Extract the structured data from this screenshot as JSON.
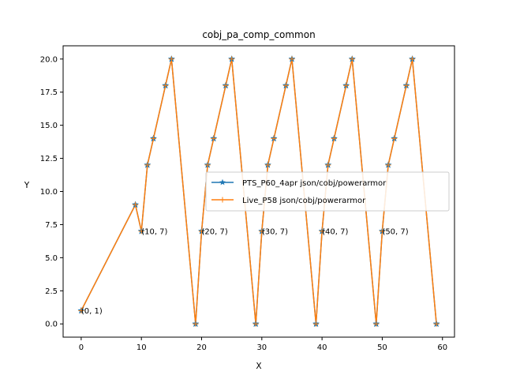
{
  "chart_data": {
    "type": "line",
    "title": "cobj_pa_comp_common",
    "xlabel": "X",
    "ylabel": "Y",
    "xlim": [
      -3,
      62
    ],
    "ylim": [
      -1,
      21
    ],
    "xticks": [
      0,
      10,
      20,
      30,
      40,
      50,
      60
    ],
    "yticks": [
      0.0,
      2.5,
      5.0,
      7.5,
      10.0,
      12.5,
      15.0,
      17.5,
      20.0
    ],
    "ytick_labels": [
      "0.0",
      "2.5",
      "5.0",
      "7.5",
      "10.0",
      "12.5",
      "15.0",
      "17.5",
      "20.0"
    ],
    "grid": false,
    "legend_position": "center-right",
    "series": [
      {
        "name": "PTS_P60_4apr json/cobj/powerarmor",
        "color": "#1f77b4",
        "marker": "star",
        "x": [
          0,
          9,
          10,
          11,
          12,
          14,
          15,
          19,
          20,
          21,
          22,
          24,
          25,
          29,
          30,
          31,
          32,
          34,
          35,
          39,
          40,
          41,
          42,
          44,
          45,
          49,
          50,
          51,
          52,
          54,
          55,
          59
        ],
        "y": [
          1,
          9,
          7,
          12,
          14,
          18,
          20,
          0,
          7,
          12,
          14,
          18,
          20,
          0,
          7,
          12,
          14,
          18,
          20,
          0,
          7,
          12,
          14,
          18,
          20,
          0,
          7,
          12,
          14,
          18,
          20,
          0
        ]
      },
      {
        "name": "Live_P58 json/cobj/powerarmor",
        "color": "#ff7f0e",
        "marker": "plus",
        "x": [
          0,
          9,
          10,
          11,
          12,
          14,
          15,
          19,
          20,
          21,
          22,
          24,
          25,
          29,
          30,
          31,
          32,
          34,
          35,
          39,
          40,
          41,
          42,
          44,
          45,
          49,
          50,
          51,
          52,
          54,
          55,
          59
        ],
        "y": [
          1,
          9,
          7,
          12,
          14,
          18,
          20,
          0,
          7,
          12,
          14,
          18,
          20,
          0,
          7,
          12,
          14,
          18,
          20,
          0,
          7,
          12,
          14,
          18,
          20,
          0,
          7,
          12,
          14,
          18,
          20,
          0
        ]
      }
    ],
    "annotations": [
      {
        "text": "(0, 1)",
        "x": 0,
        "y": 1
      },
      {
        "text": "(10, 7)",
        "x": 10,
        "y": 7
      },
      {
        "text": "(20, 7)",
        "x": 20,
        "y": 7
      },
      {
        "text": "(30, 7)",
        "x": 30,
        "y": 7
      },
      {
        "text": "(40, 7)",
        "x": 40,
        "y": 7
      },
      {
        "text": "(50, 7)",
        "x": 50,
        "y": 7
      }
    ]
  }
}
